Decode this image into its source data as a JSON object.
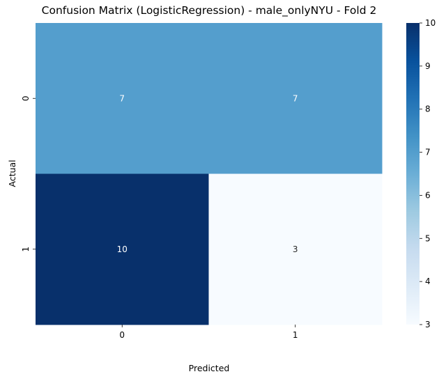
{
  "chart_data": {
    "type": "heatmap",
    "title": "Confusion Matrix (LogisticRegression) - male_onlyNYU - Fold 2",
    "xlabel": "Predicted",
    "ylabel": "Actual",
    "x_categories": [
      "0",
      "1"
    ],
    "y_categories": [
      "0",
      "1"
    ],
    "values": [
      [
        7,
        7
      ],
      [
        10,
        3
      ]
    ],
    "annotations": [
      [
        "7",
        "7"
      ],
      [
        "10",
        "3"
      ]
    ],
    "colormap": "Blues",
    "colorbar": {
      "range": [
        3,
        10
      ],
      "ticks": [
        3,
        4,
        5,
        6,
        7,
        8,
        9,
        10
      ]
    },
    "colors": {
      "low": "#f7fbff",
      "high": "#08306b",
      "annotation_light": "#ffffff",
      "annotation_dark": "#262626"
    },
    "grid": false
  }
}
